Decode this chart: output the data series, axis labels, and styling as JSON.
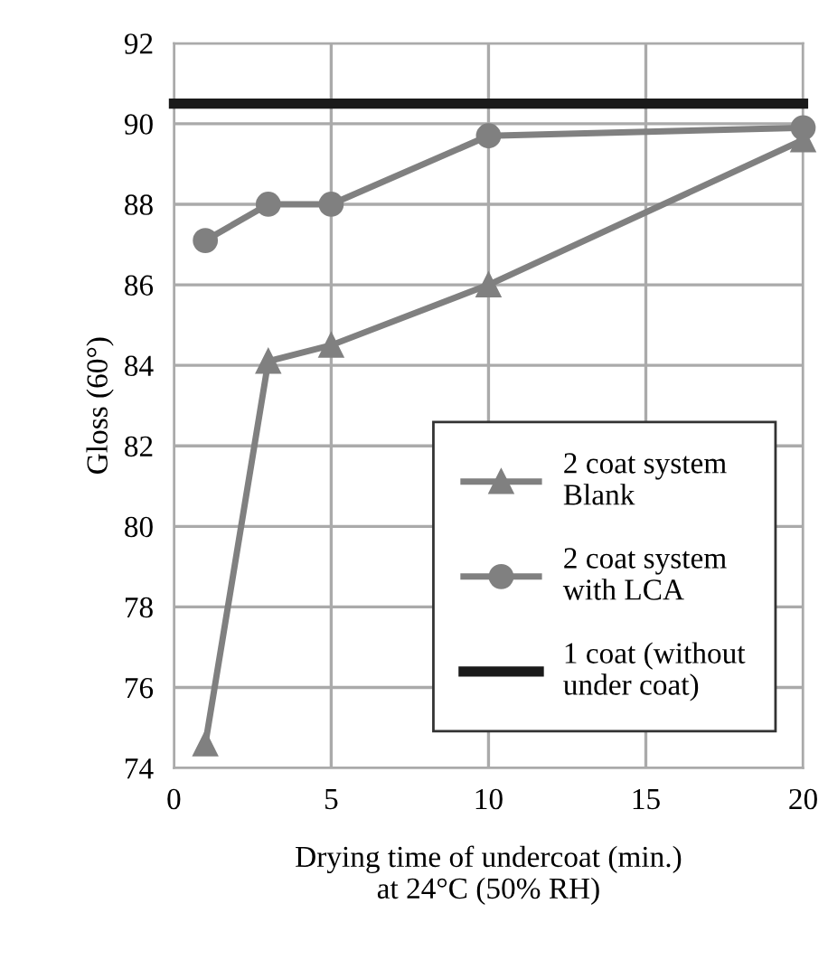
{
  "chart_data": {
    "type": "line",
    "xlabel": "Drying time of undercoat (min.)\nat 24°C (50% RH)",
    "ylabel": "Gloss (60°)",
    "xlim": [
      0,
      20
    ],
    "xticks": [
      0,
      5,
      10,
      15,
      20
    ],
    "ylim": [
      74,
      92
    ],
    "yticks": [
      74,
      76,
      78,
      80,
      82,
      84,
      86,
      88,
      90,
      92
    ],
    "grid": true,
    "legend": "bottom right",
    "series": [
      {
        "name": "2 coat system\nBlank",
        "color": "#808080",
        "marker": "triangle",
        "x": [
          1,
          3,
          5,
          10,
          20
        ],
        "values": [
          74.6,
          84.1,
          84.5,
          86.0,
          89.6
        ]
      },
      {
        "name": "2 coat system\nwith LCA",
        "color": "#808080",
        "marker": "circle",
        "x": [
          1,
          3,
          5,
          10,
          20
        ],
        "values": [
          87.1,
          88.0,
          88.0,
          89.7,
          89.9
        ]
      },
      {
        "name": "1 coat (without\nunder coat)",
        "color": "#1a1a1a",
        "marker": "none",
        "x": [
          0,
          20
        ],
        "values": [
          90.5,
          90.5
        ]
      }
    ]
  }
}
